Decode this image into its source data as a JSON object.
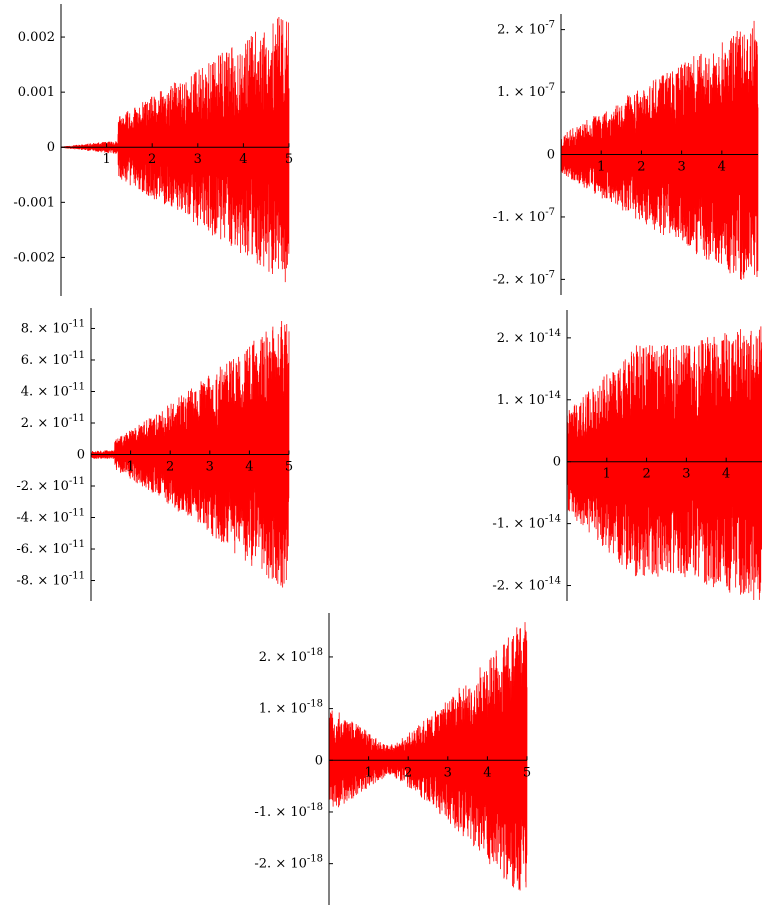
{
  "figure": {
    "line_color": "#ff0000",
    "axis_color": "#000000",
    "background": "#ffffff"
  },
  "chart_data": [
    {
      "type": "line",
      "xlim": [
        0,
        5
      ],
      "x_ticks": [
        {
          "value": 1,
          "label": "1"
        },
        {
          "value": 2,
          "label": "2"
        },
        {
          "value": 3,
          "label": "3"
        },
        {
          "value": 4,
          "label": "4"
        },
        {
          "value": 5,
          "label": "5"
        }
      ],
      "ylim": [
        -0.0027,
        0.0026
      ],
      "y_ticks": [
        {
          "value": 0.002,
          "mant": "0.002",
          "exp": ""
        },
        {
          "value": 0.001,
          "mant": "0.001",
          "exp": ""
        },
        {
          "value": 0,
          "mant": "0",
          "exp": ""
        },
        {
          "value": -0.001,
          "mant": "-0.001",
          "exp": ""
        },
        {
          "value": -0.002,
          "mant": "-0.002",
          "exp": ""
        }
      ],
      "envelope": {
        "start_amplitude": 1e-05,
        "end_amplitude": 0.0025,
        "growth": "roughly linear in x",
        "oscillation": "dense"
      }
    },
    {
      "type": "line",
      "xlim": [
        0,
        4.9
      ],
      "x_ticks": [
        {
          "value": 1,
          "label": "1"
        },
        {
          "value": 2,
          "label": "2"
        },
        {
          "value": 3,
          "label": "3"
        },
        {
          "value": 4,
          "label": "4"
        }
      ],
      "ylim": [
        -2.25e-07,
        2.25e-07
      ],
      "y_ticks": [
        {
          "value": 2e-07,
          "mant": "2.",
          "exp": "-7"
        },
        {
          "value": 1e-07,
          "mant": "1.",
          "exp": "-7"
        },
        {
          "value": 0,
          "mant": "0",
          "exp": ""
        },
        {
          "value": -1e-07,
          "mant": "-1.",
          "exp": "-7"
        },
        {
          "value": -2e-07,
          "mant": "-2.",
          "exp": "-7"
        }
      ],
      "envelope": {
        "start_amplitude": 3e-08,
        "end_amplitude": 2.2e-07,
        "growth": "roughly linear in x",
        "oscillation": "dense"
      }
    },
    {
      "type": "line",
      "xlim": [
        0,
        5
      ],
      "x_ticks": [
        {
          "value": 1,
          "label": "1"
        },
        {
          "value": 2,
          "label": "2"
        },
        {
          "value": 3,
          "label": "3"
        },
        {
          "value": 4,
          "label": "4"
        },
        {
          "value": 5,
          "label": "5"
        }
      ],
      "ylim": [
        -9.3e-11,
        9.3e-11
      ],
      "y_ticks": [
        {
          "value": 8e-11,
          "mant": "8.",
          "exp": "-11"
        },
        {
          "value": 6e-11,
          "mant": "6.",
          "exp": "-11"
        },
        {
          "value": 4e-11,
          "mant": "4.",
          "exp": "-11"
        },
        {
          "value": 2e-11,
          "mant": "2.",
          "exp": "-11"
        },
        {
          "value": 0,
          "mant": "0",
          "exp": ""
        },
        {
          "value": -2e-11,
          "mant": "-2.",
          "exp": "-11"
        },
        {
          "value": -4e-11,
          "mant": "-4.",
          "exp": "-11"
        },
        {
          "value": -6e-11,
          "mant": "-6.",
          "exp": "-11"
        },
        {
          "value": -8e-11,
          "mant": "-8.",
          "exp": "-11"
        }
      ],
      "envelope": {
        "start_amplitude": 2e-12,
        "end_amplitude": 9e-11,
        "growth": "roughly linear in x",
        "oscillation": "dense"
      }
    },
    {
      "type": "line",
      "xlim": [
        0,
        4.9
      ],
      "x_ticks": [
        {
          "value": 1,
          "label": "1"
        },
        {
          "value": 2,
          "label": "2"
        },
        {
          "value": 3,
          "label": "3"
        },
        {
          "value": 4,
          "label": "4"
        }
      ],
      "ylim": [
        -2.25e-14,
        2.45e-14
      ],
      "y_ticks": [
        {
          "value": 2e-14,
          "mant": "2.",
          "exp": "-14"
        },
        {
          "value": 1e-14,
          "mant": "1.",
          "exp": "-14"
        },
        {
          "value": 0,
          "mant": "0",
          "exp": ""
        },
        {
          "value": -1e-14,
          "mant": "-1.",
          "exp": "-14"
        },
        {
          "value": -2e-14,
          "mant": "-2.",
          "exp": "-14"
        }
      ],
      "envelope": {
        "start_amplitude": 8e-15,
        "end_amplitude": 2.3e-14,
        "growth": "rises, plateaus near x=2, then grows",
        "oscillation": "dense"
      }
    },
    {
      "type": "line",
      "xlim": [
        0,
        5
      ],
      "x_ticks": [
        {
          "value": 1,
          "label": "1"
        },
        {
          "value": 2,
          "label": "2"
        },
        {
          "value": 3,
          "label": "3"
        },
        {
          "value": 4,
          "label": "4"
        },
        {
          "value": 5,
          "label": "5"
        }
      ],
      "ylim": [
        -2.8e-18,
        2.85e-18
      ],
      "y_ticks": [
        {
          "value": 2e-18,
          "mant": "2.",
          "exp": "-18"
        },
        {
          "value": 1e-18,
          "mant": "1.",
          "exp": "-18"
        },
        {
          "value": 0,
          "mant": "0",
          "exp": ""
        },
        {
          "value": -1e-18,
          "mant": "-1.",
          "exp": "-18"
        },
        {
          "value": -2e-18,
          "mant": "-2.",
          "exp": "-18"
        }
      ],
      "envelope": {
        "start_amplitude": 1.05e-18,
        "end_amplitude": 2.8e-18,
        "growth": "dips to a minimum near x=1.5, then grows",
        "oscillation": "dense"
      }
    }
  ]
}
